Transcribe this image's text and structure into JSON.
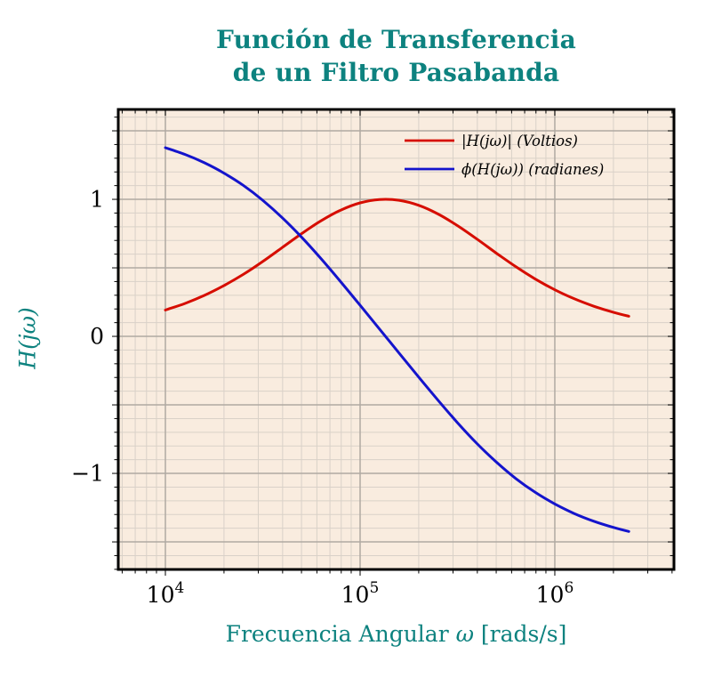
{
  "title": {
    "line1": "Función de Transferencia",
    "line2": "de un Filtro Pasabanda"
  },
  "axes": {
    "xlabel_text": "Frecuencia Angular ",
    "xlabel_omega": "ω",
    "xlabel_units": " [rads/s]",
    "ylabel": "H(jω)",
    "x_tick_labels": [
      {
        "base": "10",
        "exp": "4",
        "log": 4
      },
      {
        "base": "10",
        "exp": "5",
        "log": 5
      },
      {
        "base": "10",
        "exp": "6",
        "log": 6
      }
    ],
    "y_tick_labels": [
      {
        "label": "1",
        "value": 1
      },
      {
        "label": "0",
        "value": 0
      },
      {
        "label": "−1",
        "value": -1
      }
    ]
  },
  "legend": {
    "entries": [
      {
        "label": "|H(jω)| (Voltios)",
        "color": "#d60d00"
      },
      {
        "label": "ϕ(H(jω)) (radianes)",
        "color": "#1414cc"
      }
    ]
  },
  "colors": {
    "accent_teal": "#0d827f",
    "plot_background": "#f9ecdf",
    "minor_grid": "#d9d1c8",
    "major_grid": "#b0a9a2",
    "axis_border": "#000000",
    "magnitude_red": "#d60d00",
    "phase_blue": "#1414cc",
    "tick_text": "#000000"
  },
  "chart_data": {
    "type": "line",
    "title": "Función de Transferencia de un Filtro Pasabanda",
    "xlabel": "Frecuencia Angular ω [rads/s]",
    "ylabel": "H(jω)",
    "x_scale": "log",
    "xlim_log": [
      3.758,
      6.612
    ],
    "ylim": [
      -1.701,
      1.656
    ],
    "x_major_ticks_log": [
      4,
      5,
      6
    ],
    "y_labeled_ticks": [
      1,
      0,
      -1
    ],
    "grid": "both",
    "legend_position": "top-right-inside",
    "log_omega": [
      4.0,
      4.1,
      4.2,
      4.3,
      4.4,
      4.5,
      4.6,
      4.7,
      4.8,
      4.9,
      5.0,
      5.1,
      5.2,
      5.3,
      5.4,
      5.5,
      5.6,
      5.7,
      5.8,
      5.9,
      6.0,
      6.1,
      6.2,
      6.3,
      6.38
    ],
    "series": [
      {
        "name": "|H(jω)| (Voltios)",
        "color": "#d60d00",
        "values": [
          0.192,
          0.24,
          0.299,
          0.37,
          0.452,
          0.546,
          0.648,
          0.75,
          0.844,
          0.921,
          0.974,
          0.999,
          0.993,
          0.957,
          0.893,
          0.808,
          0.71,
          0.607,
          0.508,
          0.418,
          0.34,
          0.274,
          0.22,
          0.176,
          0.147
        ]
      },
      {
        "name": "ϕ(H(jω)) (radianes)",
        "color": "#1414cc",
        "values": [
          1.377,
          1.328,
          1.267,
          1.192,
          1.102,
          0.993,
          0.866,
          0.723,
          0.566,
          0.399,
          0.227,
          0.053,
          -0.122,
          -0.296,
          -0.466,
          -0.63,
          -0.782,
          -0.918,
          -1.038,
          -1.139,
          -1.223,
          -1.293,
          -1.349,
          -1.394,
          -1.424
        ]
      }
    ]
  }
}
